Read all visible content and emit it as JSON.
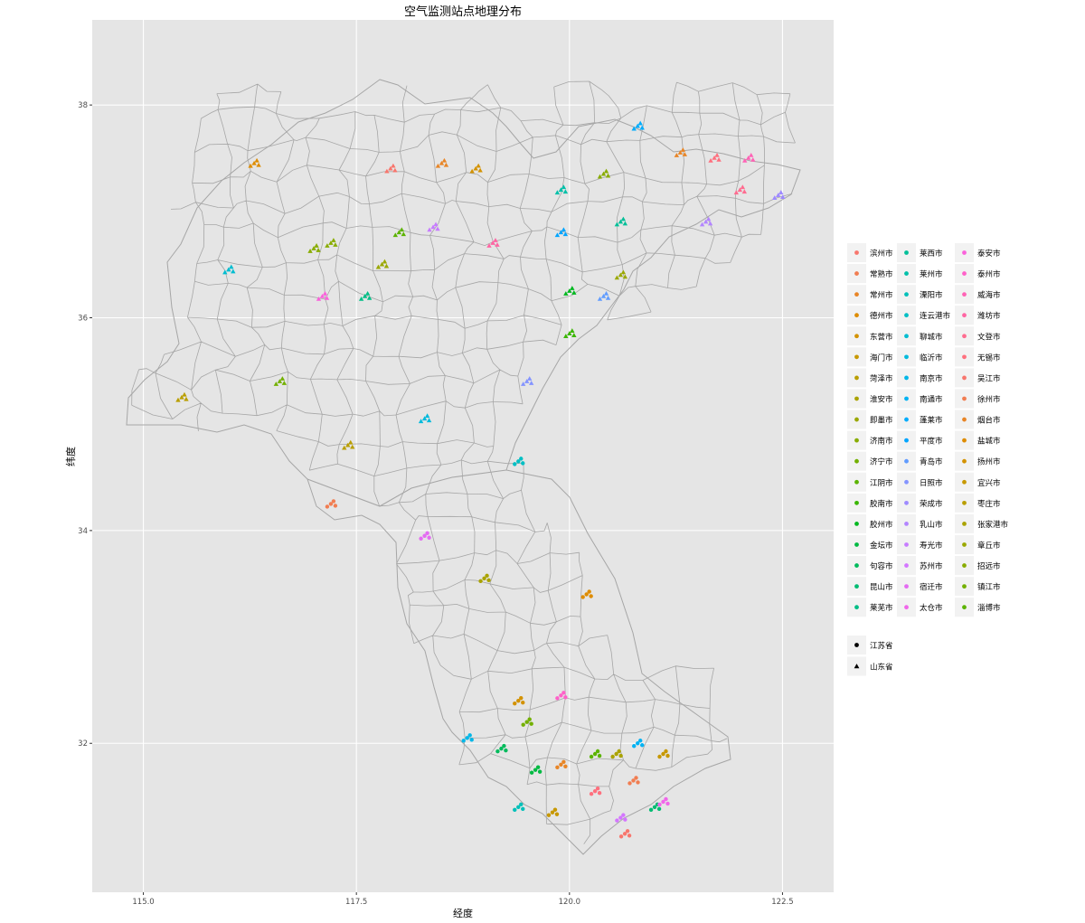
{
  "map": {
    "title": "空气监测站点地理分布",
    "x_axis": {
      "label": "经度",
      "min": 114.4,
      "max": 123.1,
      "ticks": [
        "115.0",
        "117.5",
        "120.0",
        "122.5"
      ]
    },
    "y_axis": {
      "label": "纬度",
      "min": 30.6,
      "max": 38.8,
      "ticks": [
        "32",
        "34",
        "36",
        "38"
      ]
    },
    "background": "#e5e5e5",
    "grid_color": "#ffffff",
    "boundary_color": "#a6a6a6",
    "legend": {
      "cities": [
        "滨州市",
        "常熟市",
        "常州市",
        "德州市",
        "东营市",
        "海门市",
        "菏泽市",
        "淮安市",
        "即墨市",
        "济南市",
        "济宁市",
        "江阴市",
        "胶南市",
        "胶州市",
        "金坛市",
        "句容市",
        "昆山市",
        "莱芜市",
        "莱西市",
        "莱州市",
        "溧阳市",
        "连云港市",
        "聊城市",
        "临沂市",
        "南京市",
        "南通市",
        "蓬莱市",
        "平度市",
        "青岛市",
        "日照市",
        "荣成市",
        "乳山市",
        "寿光市",
        "苏州市",
        "宿迁市",
        "太仓市",
        "泰安市",
        "泰州市",
        "威海市",
        "潍坊市",
        "文登市",
        "无锡市",
        "吴江市",
        "徐州市",
        "烟台市",
        "盐城市",
        "扬州市",
        "宜兴市",
        "枣庄市",
        "张家港市",
        "章丘市",
        "招远市",
        "镇江市",
        "淄博市"
      ],
      "city_colors": [
        "#F8766D",
        "#F17D51",
        "#E88526",
        "#DE8C00",
        "#D39200",
        "#C79800",
        "#B99E00",
        "#AAA300",
        "#9AA800",
        "#88AC00",
        "#73B000",
        "#5BB300",
        "#39B600",
        "#00B81F",
        "#00BA42",
        "#00BB5C",
        "#00BC72",
        "#00BE86",
        "#00BF98",
        "#00C0A9",
        "#00C0B9",
        "#00BFC4",
        "#00BDD0",
        "#00BADC",
        "#00B7E8",
        "#00B2F3",
        "#00ACFC",
        "#00A5FF",
        "#619CFF",
        "#8494FF",
        "#9E8AFF",
        "#B385FF",
        "#C77CFF",
        "#D476FF",
        "#E46BF2",
        "#F066EA",
        "#FA62DB",
        "#FF61C9",
        "#FF63B6",
        "#FF65A3",
        "#FF6C90",
        "#FF707E",
        "#F8766D",
        "#F17D51",
        "#E88526",
        "#DE8C00",
        "#D39200",
        "#C79800",
        "#B99E00",
        "#AAA300",
        "#9AA800",
        "#88AC00",
        "#73B000",
        "#5BB300"
      ],
      "provinces": [
        {
          "name": "江苏省",
          "shape": "circle"
        },
        {
          "name": "山东省",
          "shape": "triangle"
        }
      ]
    }
  },
  "stations": [
    {
      "lon": 117.9,
      "lat": 37.4,
      "c": 0,
      "s": "t"
    },
    {
      "lon": 118.5,
      "lat": 37.45,
      "c": 2,
      "s": "t"
    },
    {
      "lon": 118.9,
      "lat": 37.4,
      "c": 4,
      "s": "t"
    },
    {
      "lon": 116.3,
      "lat": 37.45,
      "c": 3,
      "s": "t"
    },
    {
      "lon": 117.2,
      "lat": 36.7,
      "c": 9,
      "s": "t"
    },
    {
      "lon": 117.0,
      "lat": 36.65,
      "c": 9,
      "s": "t"
    },
    {
      "lon": 116.0,
      "lat": 36.45,
      "c": 22,
      "s": "t"
    },
    {
      "lon": 117.6,
      "lat": 36.2,
      "c": 17,
      "s": "t"
    },
    {
      "lon": 117.1,
      "lat": 36.2,
      "c": 36,
      "s": "t"
    },
    {
      "lon": 118.0,
      "lat": 36.8,
      "c": 53,
      "s": "t"
    },
    {
      "lon": 117.8,
      "lat": 36.5,
      "c": 50,
      "s": "t"
    },
    {
      "lon": 118.4,
      "lat": 36.85,
      "c": 32,
      "s": "t"
    },
    {
      "lon": 119.1,
      "lat": 36.7,
      "c": 39,
      "s": "t"
    },
    {
      "lon": 119.9,
      "lat": 37.2,
      "c": 19,
      "s": "t"
    },
    {
      "lon": 120.4,
      "lat": 37.35,
      "c": 51,
      "s": "t"
    },
    {
      "lon": 120.8,
      "lat": 37.8,
      "c": 26,
      "s": "t"
    },
    {
      "lon": 121.3,
      "lat": 37.55,
      "c": 44,
      "s": "t"
    },
    {
      "lon": 121.7,
      "lat": 37.5,
      "c": 41,
      "s": "t"
    },
    {
      "lon": 122.1,
      "lat": 37.5,
      "c": 38,
      "s": "t"
    },
    {
      "lon": 122.45,
      "lat": 37.15,
      "c": 30,
      "s": "t"
    },
    {
      "lon": 121.6,
      "lat": 36.9,
      "c": 31,
      "s": "t"
    },
    {
      "lon": 122.0,
      "lat": 37.2,
      "c": 40,
      "s": "t"
    },
    {
      "lon": 120.6,
      "lat": 36.9,
      "c": 18,
      "s": "t"
    },
    {
      "lon": 119.9,
      "lat": 36.8,
      "c": 27,
      "s": "t"
    },
    {
      "lon": 120.0,
      "lat": 36.25,
      "c": 13,
      "s": "t"
    },
    {
      "lon": 120.4,
      "lat": 36.2,
      "c": 28,
      "s": "t"
    },
    {
      "lon": 120.6,
      "lat": 36.4,
      "c": 8,
      "s": "t"
    },
    {
      "lon": 120.0,
      "lat": 35.85,
      "c": 12,
      "s": "t"
    },
    {
      "lon": 119.5,
      "lat": 35.4,
      "c": 29,
      "s": "t"
    },
    {
      "lon": 118.3,
      "lat": 35.05,
      "c": 23,
      "s": "t"
    },
    {
      "lon": 116.6,
      "lat": 35.4,
      "c": 10,
      "s": "t"
    },
    {
      "lon": 115.45,
      "lat": 35.25,
      "c": 6,
      "s": "t"
    },
    {
      "lon": 117.4,
      "lat": 34.8,
      "c": 48,
      "s": "t"
    },
    {
      "lon": 119.4,
      "lat": 34.65,
      "c": 21,
      "s": "c"
    },
    {
      "lon": 117.2,
      "lat": 34.25,
      "c": 43,
      "s": "c"
    },
    {
      "lon": 118.3,
      "lat": 33.95,
      "c": 34,
      "s": "c"
    },
    {
      "lon": 119.0,
      "lat": 33.55,
      "c": 7,
      "s": "c"
    },
    {
      "lon": 120.2,
      "lat": 33.4,
      "c": 45,
      "s": "c"
    },
    {
      "lon": 119.9,
      "lat": 32.45,
      "c": 37,
      "s": "c"
    },
    {
      "lon": 119.4,
      "lat": 32.4,
      "c": 46,
      "s": "c"
    },
    {
      "lon": 119.5,
      "lat": 32.2,
      "c": 52,
      "s": "c"
    },
    {
      "lon": 118.8,
      "lat": 32.05,
      "c": 24,
      "s": "c"
    },
    {
      "lon": 119.2,
      "lat": 31.95,
      "c": 15,
      "s": "c"
    },
    {
      "lon": 119.6,
      "lat": 31.75,
      "c": 14,
      "s": "c"
    },
    {
      "lon": 119.9,
      "lat": 31.8,
      "c": 2,
      "s": "c"
    },
    {
      "lon": 120.3,
      "lat": 31.9,
      "c": 11,
      "s": "c"
    },
    {
      "lon": 120.8,
      "lat": 32.0,
      "c": 25,
      "s": "c"
    },
    {
      "lon": 121.1,
      "lat": 31.9,
      "c": 5,
      "s": "c"
    },
    {
      "lon": 120.55,
      "lat": 31.9,
      "c": 49,
      "s": "c"
    },
    {
      "lon": 120.75,
      "lat": 31.65,
      "c": 1,
      "s": "c"
    },
    {
      "lon": 120.3,
      "lat": 31.55,
      "c": 41,
      "s": "c"
    },
    {
      "lon": 119.8,
      "lat": 31.35,
      "c": 47,
      "s": "c"
    },
    {
      "lon": 119.4,
      "lat": 31.4,
      "c": 20,
      "s": "c"
    },
    {
      "lon": 120.6,
      "lat": 31.3,
      "c": 33,
      "s": "c"
    },
    {
      "lon": 121.0,
      "lat": 31.4,
      "c": 16,
      "s": "c"
    },
    {
      "lon": 121.1,
      "lat": 31.45,
      "c": 35,
      "s": "c"
    },
    {
      "lon": 120.65,
      "lat": 31.15,
      "c": 42,
      "s": "c"
    }
  ]
}
